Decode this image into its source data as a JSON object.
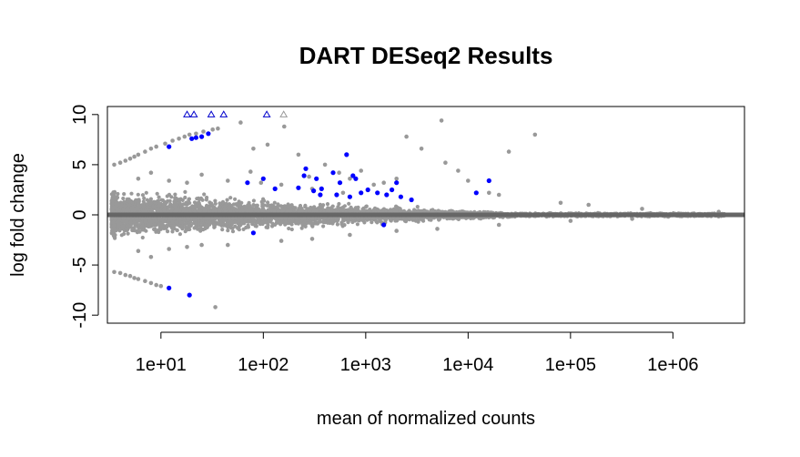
{
  "chart_data": {
    "type": "scatter",
    "title": "DART DESeq2 Results",
    "xlabel": "mean of normalized counts",
    "ylabel": "log fold change",
    "x_scale": "log10",
    "xlim": [
      3,
      5000000
    ],
    "ylim": [
      -10.8,
      10.8
    ],
    "x_ticks": [
      {
        "value": 10,
        "label": "1e+01"
      },
      {
        "value": 100,
        "label": "1e+02"
      },
      {
        "value": 1000,
        "label": "1e+03"
      },
      {
        "value": 10000,
        "label": "1e+04"
      },
      {
        "value": 100000,
        "label": "1e+05"
      },
      {
        "value": 1000000,
        "label": "1e+06"
      }
    ],
    "y_ticks": [
      {
        "value": 10,
        "label": "10"
      },
      {
        "value": 5,
        "label": "5"
      },
      {
        "value": 0,
        "label": "0"
      },
      {
        "value": -5,
        "label": "-5"
      },
      {
        "value": -10,
        "label": "-10"
      }
    ],
    "grid": false,
    "reference_line": {
      "y": 0,
      "color": "#666666"
    },
    "colors": {
      "not_significant": "#999999",
      "significant": "#0000ff",
      "capped_marker_stroke": "#0000cc"
    },
    "series": [
      {
        "significant": false,
        "points": [
          [
            3.5,
            5.0
          ],
          [
            4,
            5.2
          ],
          [
            4.5,
            5.4
          ],
          [
            5,
            5.6
          ],
          [
            5.5,
            5.8
          ],
          [
            6,
            6.0
          ],
          [
            7,
            6.3
          ],
          [
            8,
            6.6
          ],
          [
            9,
            6.8
          ],
          [
            11,
            7.1
          ],
          [
            13,
            7.4
          ],
          [
            15,
            7.6
          ],
          [
            17,
            7.8
          ],
          [
            19,
            8.0
          ],
          [
            22,
            8.1
          ],
          [
            26,
            8.3
          ],
          [
            32,
            8.5
          ],
          [
            36,
            8.6
          ],
          [
            3.5,
            -5.7
          ],
          [
            4,
            -5.8
          ],
          [
            4.5,
            -6.0
          ],
          [
            5,
            -6.1
          ],
          [
            5.5,
            -6.3
          ],
          [
            6,
            -6.4
          ],
          [
            7,
            -6.6
          ],
          [
            8,
            -6.8
          ],
          [
            9,
            -7.0
          ],
          [
            10,
            -7.1
          ],
          [
            34,
            -9.2
          ],
          [
            60,
            9.2
          ],
          [
            75,
            4.3
          ],
          [
            80,
            6.6
          ],
          [
            95,
            3.2
          ],
          [
            110,
            7.0
          ],
          [
            160,
            8.8
          ],
          [
            220,
            6.0
          ],
          [
            280,
            3.8
          ],
          [
            400,
            5.0
          ],
          [
            550,
            4.2
          ],
          [
            700,
            3.6
          ],
          [
            900,
            4.4
          ],
          [
            1200,
            3.0
          ],
          [
            1500,
            3.2
          ],
          [
            2000,
            3.6
          ],
          [
            2500,
            7.8
          ],
          [
            3500,
            6.6
          ],
          [
            5500,
            9.4
          ],
          [
            6000,
            5.2
          ],
          [
            8000,
            4.4
          ],
          [
            10000,
            3.4
          ],
          [
            16000,
            2.2
          ],
          [
            20000,
            2.0
          ],
          [
            25000,
            6.3
          ],
          [
            45000,
            8.0
          ],
          [
            80000,
            1.2
          ],
          [
            150000,
            1.0
          ],
          [
            500000,
            0.6
          ],
          [
            2800000,
            0.3
          ],
          [
            6,
            3.6
          ],
          [
            8,
            4.2
          ],
          [
            12,
            3.4
          ],
          [
            18,
            3.2
          ],
          [
            25,
            4.0
          ],
          [
            45,
            3.4
          ],
          [
            150,
            3.0
          ],
          [
            300,
            2.6
          ],
          [
            600,
            2.2
          ],
          [
            6,
            -3.6
          ],
          [
            8,
            -4.2
          ],
          [
            12,
            -3.4
          ],
          [
            18,
            -3.2
          ],
          [
            25,
            -3.0
          ],
          [
            45,
            -3.0
          ],
          [
            150,
            -2.6
          ],
          [
            300,
            -2.4
          ],
          [
            700,
            -2.0
          ],
          [
            2000,
            -1.6
          ],
          [
            5000,
            -1.4
          ],
          [
            20000,
            -1.0
          ],
          [
            100000,
            -0.6
          ],
          [
            400000,
            -0.4
          ]
        ]
      },
      {
        "significant": true,
        "points": [
          [
            12,
            6.8
          ],
          [
            20,
            7.6
          ],
          [
            22,
            7.7
          ],
          [
            25,
            7.8
          ],
          [
            29,
            8.1
          ],
          [
            12,
            -7.3
          ],
          [
            19,
            -8.0
          ],
          [
            80,
            -1.8
          ],
          [
            70,
            3.2
          ],
          [
            100,
            3.6
          ],
          [
            130,
            2.6
          ],
          [
            220,
            2.7
          ],
          [
            250,
            3.9
          ],
          [
            260,
            4.6
          ],
          [
            310,
            2.4
          ],
          [
            330,
            3.6
          ],
          [
            360,
            2.0
          ],
          [
            370,
            2.6
          ],
          [
            480,
            4.2
          ],
          [
            520,
            2.0
          ],
          [
            560,
            3.2
          ],
          [
            650,
            6.0
          ],
          [
            700,
            1.8
          ],
          [
            750,
            3.9
          ],
          [
            800,
            3.6
          ],
          [
            900,
            2.2
          ],
          [
            1050,
            2.5
          ],
          [
            1300,
            2.2
          ],
          [
            1600,
            2.0
          ],
          [
            1800,
            2.5
          ],
          [
            2000,
            3.2
          ],
          [
            2200,
            1.8
          ],
          [
            2800,
            1.5
          ],
          [
            12000,
            2.2
          ],
          [
            16000,
            3.4
          ],
          [
            1500,
            -1.0
          ]
        ]
      }
    ],
    "capped_points": [
      {
        "x": 18,
        "y": 10,
        "significant": true
      },
      {
        "x": 21,
        "y": 10,
        "significant": true
      },
      {
        "x": 31,
        "y": 10,
        "significant": true
      },
      {
        "x": 41,
        "y": 10,
        "significant": true
      },
      {
        "x": 108,
        "y": 10,
        "significant": true
      },
      {
        "x": 158,
        "y": 10,
        "significant": false
      }
    ]
  }
}
